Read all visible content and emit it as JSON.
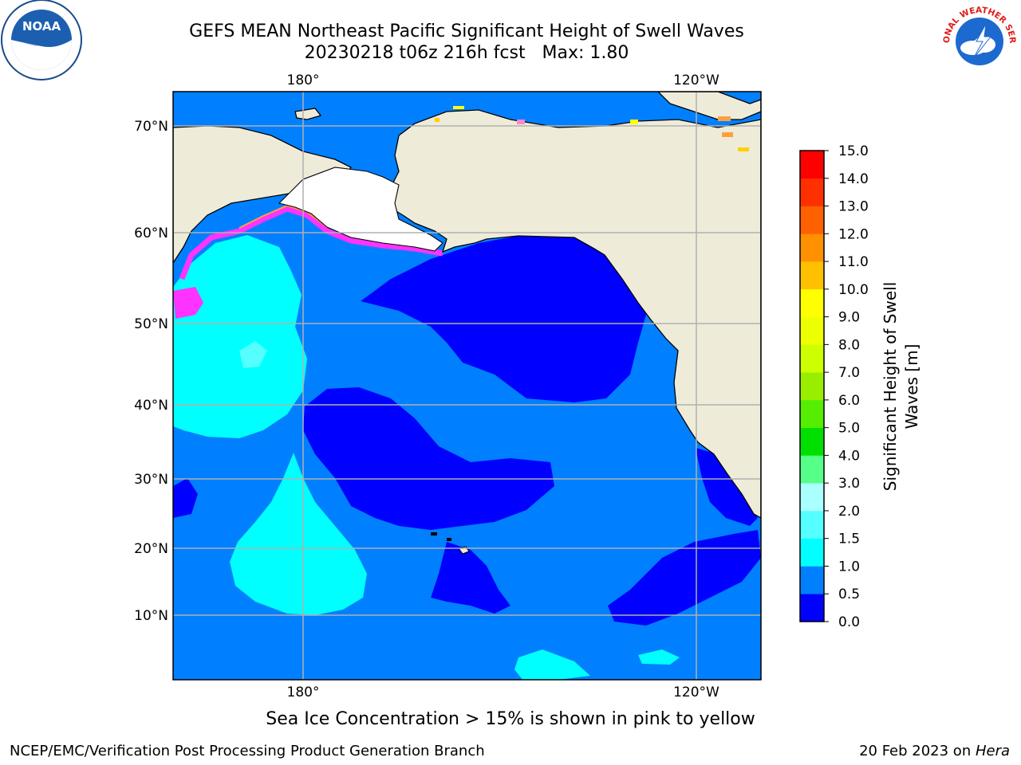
{
  "header": {
    "title_line1": "GEFS MEAN Northeast Pacific Significant Height of Swell Waves",
    "title_line2": "20230218 t06z 216h fcst   Max: 1.80"
  },
  "logos": {
    "left": "NOAA",
    "right": "NATIONAL WEATHER SERVICE",
    "left_icon": "noaa-logo-icon",
    "right_icon": "nws-logo-icon"
  },
  "map": {
    "lon_labels": [
      "180°",
      "120°W"
    ],
    "lat_labels": [
      "70°N",
      "60°N",
      "50°N",
      "40°N",
      "30°N",
      "20°N",
      "10°N"
    ],
    "colors": {
      "land": "#eeecd9",
      "ocean_low": "#0000ff",
      "ocean_mid": "#0080ff",
      "ocean_cyan": "#00ffff",
      "ocean_light": "#55ffff",
      "ice_pink": "#ff33ff",
      "ice_orange": "#ffa040",
      "ice_yellow": "#ffff00",
      "grid": "#b0b0b0"
    }
  },
  "colorbar": {
    "ticks": [
      "0.0",
      "0.5",
      "1.0",
      "1.5",
      "2.0",
      "3.0",
      "4.0",
      "5.0",
      "6.0",
      "7.0",
      "8.0",
      "9.0",
      "10.0",
      "11.0",
      "12.0",
      "13.0",
      "14.0",
      "15.0"
    ],
    "colors": [
      "#0000ff",
      "#0080ff",
      "#00ffff",
      "#55ffff",
      "#aaffff",
      "#55ff88",
      "#00e000",
      "#55ee00",
      "#99ee00",
      "#ccff00",
      "#eeff00",
      "#ffff00",
      "#ffc000",
      "#ff9000",
      "#ff6000",
      "#ff3000",
      "#ff0000"
    ],
    "label_line1": "Significant Height of Swell",
    "label_line2": "Waves [m]"
  },
  "footer": {
    "note": "Sea Ice Concentration > 15% is shown in pink to yellow",
    "left": "NCEP/EMC/Verification Post Processing Product Generation Branch",
    "right_date": "20 Feb 2023 on ",
    "right_host": "Hera"
  }
}
